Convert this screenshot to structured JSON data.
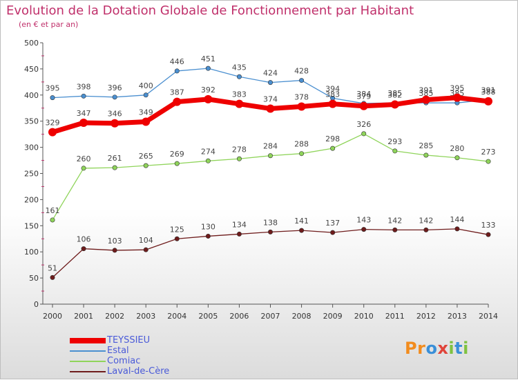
{
  "title": "Evolution de la Dotation Globale de Fonctionnement par Habitant",
  "subtitle": "(en € et par an)",
  "logo": {
    "text": "Proxiti",
    "letters": [
      "P",
      "r",
      "o",
      "x",
      "i",
      "t",
      "i"
    ],
    "colors": [
      "#f28c1e",
      "#f28c1e",
      "#3a8fd8",
      "#e0443a",
      "#7fc241",
      "#3a8fd8",
      "#7fc241"
    ]
  },
  "chart_data": {
    "type": "line",
    "x": [
      2000,
      2001,
      2002,
      2003,
      2004,
      2005,
      2006,
      2007,
      2008,
      2009,
      2010,
      2011,
      2012,
      2013,
      2014
    ],
    "ylim": [
      0,
      500
    ],
    "yticks": [
      0,
      50,
      100,
      150,
      200,
      250,
      300,
      350,
      400,
      450,
      500
    ],
    "grid": false,
    "legend_position": "bottom-left",
    "series": [
      {
        "name": "TEYSSIEU",
        "color": "#ee0000",
        "emphasis": true,
        "values": [
          329,
          347,
          346,
          349,
          387,
          392,
          383,
          374,
          378,
          383,
          379,
          382,
          391,
          395,
          388
        ]
      },
      {
        "name": "Estal",
        "color": "#4a8fd0",
        "emphasis": false,
        "values": [
          395,
          398,
          396,
          400,
          446,
          451,
          435,
          424,
          428,
          394,
          384,
          385,
          385,
          385,
          391
        ]
      },
      {
        "name": "Comiac",
        "color": "#8fd45a",
        "emphasis": false,
        "values": [
          161,
          260,
          261,
          265,
          269,
          274,
          278,
          284,
          288,
          298,
          326,
          293,
          285,
          280,
          273
        ]
      },
      {
        "name": "Laval-de-Cère",
        "color": "#6e1b1b",
        "emphasis": false,
        "values": [
          51,
          106,
          103,
          104,
          125,
          130,
          134,
          138,
          141,
          137,
          143,
          142,
          142,
          144,
          133
        ]
      }
    ]
  }
}
